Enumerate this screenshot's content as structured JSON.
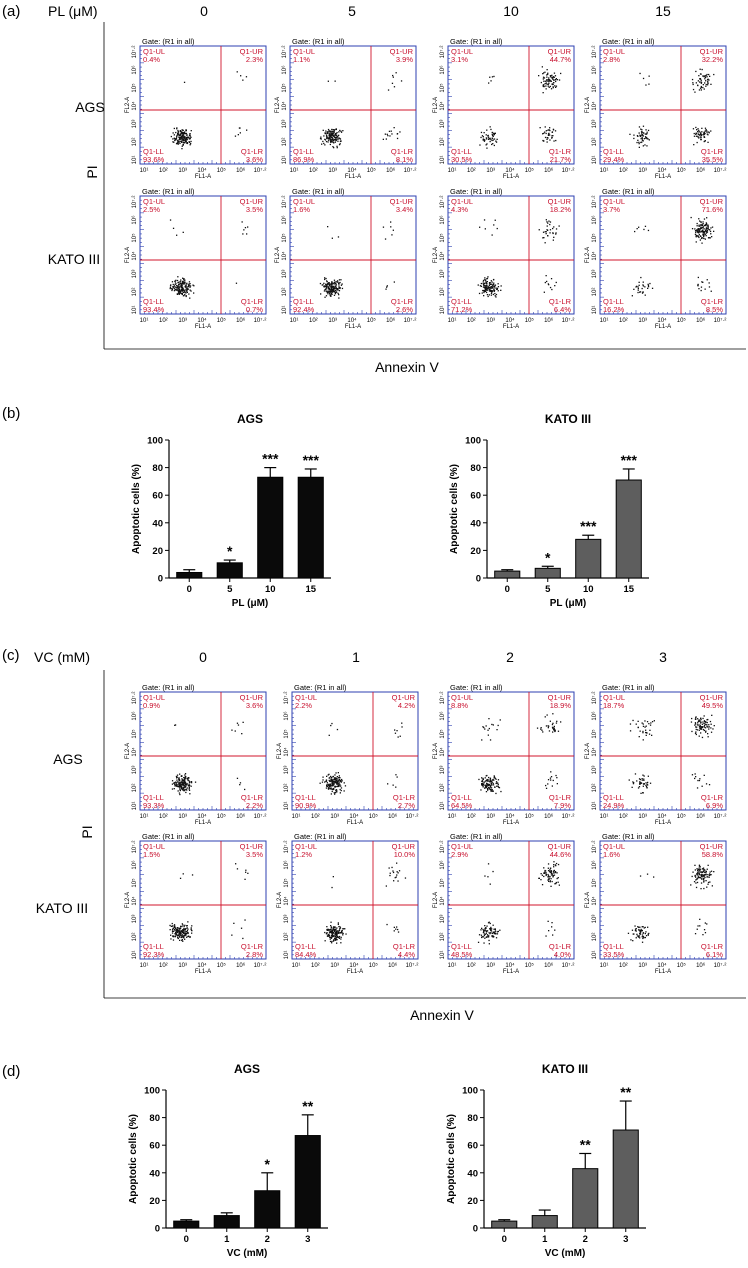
{
  "panels": {
    "a": {
      "label": "(a)",
      "condition_label": "PL (μM)",
      "columns": [
        "0",
        "5",
        "10",
        "15"
      ],
      "rows": [
        "AGS",
        "KATO III"
      ],
      "y_axis": "PI",
      "x_axis": "Annexin V",
      "plots": [
        [
          {
            "UL": "0.4%",
            "UR": "2.3%",
            "LL": "93.6%",
            "LR": "3.6%"
          },
          {
            "UL": "1.1%",
            "UR": "3.9%",
            "LL": "86.9%",
            "LR": "8.1%"
          },
          {
            "UL": "3.1%",
            "UR": "44.7%",
            "LL": "30.5%",
            "LR": "21.7%"
          },
          {
            "UL": "2.8%",
            "UR": "32.2%",
            "LL": "29.4%",
            "LR": "35.5%"
          }
        ],
        [
          {
            "UL": "2.5%",
            "UR": "3.5%",
            "LL": "93.4%",
            "LR": "0.7%"
          },
          {
            "UL": "1.6%",
            "UR": "3.4%",
            "LL": "92.4%",
            "LR": "2.6%"
          },
          {
            "UL": "4.3%",
            "UR": "18.2%",
            "LL": "71.2%",
            "LR": "6.4%"
          },
          {
            "UL": "3.7%",
            "UR": "71.6%",
            "LL": "16.2%",
            "LR": "8.5%"
          }
        ]
      ]
    },
    "b": {
      "label": "(b)"
    },
    "c": {
      "label": "(c)",
      "condition_label": "VC (mM)",
      "columns": [
        "0",
        "1",
        "2",
        "3"
      ],
      "rows": [
        "AGS",
        "KATO III"
      ],
      "y_axis": "PI",
      "x_axis": "Annexin V",
      "plots": [
        [
          {
            "UL": "0.9%",
            "UR": "3.6%",
            "LL": "93.3%",
            "LR": "2.2%"
          },
          {
            "UL": "2.2%",
            "UR": "4.2%",
            "LL": "90.9%",
            "LR": "2.7%"
          },
          {
            "UL": "8.8%",
            "UR": "18.9%",
            "LL": "64.5%",
            "LR": "7.9%"
          },
          {
            "UL": "18.7%",
            "UR": "49.5%",
            "LL": "24.9%",
            "LR": "6.9%"
          }
        ],
        [
          {
            "UL": "1.5%",
            "UR": "3.5%",
            "LL": "92.3%",
            "LR": "2.8%"
          },
          {
            "UL": "1.2%",
            "UR": "10.0%",
            "LL": "84.4%",
            "LR": "4.4%"
          },
          {
            "UL": "2.9%",
            "UR": "44.6%",
            "LL": "48.5%",
            "LR": "4.0%"
          },
          {
            "UL": "1.6%",
            "UR": "58.8%",
            "LL": "33.5%",
            "LR": "6.1%"
          }
        ]
      ]
    },
    "d": {
      "label": "(d)"
    }
  },
  "flow": {
    "gate": "Gate: (R1 in all)",
    "q_ul": "Q1-UL",
    "q_ur": "Q1-UR",
    "q_ll": "Q1-LL",
    "q_lr": "Q1-LR",
    "x_name": "FL1-A",
    "y_name": "FL2-A",
    "axis_ticks": [
      "10¹",
      "10²",
      "10³",
      "10⁴",
      "10⁵",
      "10⁶",
      "10⁷·²"
    ]
  },
  "chart_data": [
    {
      "type": "bar",
      "panel": "b",
      "title": "AGS",
      "categories": [
        "0",
        "5",
        "10",
        "15"
      ],
      "values": [
        4,
        11,
        73,
        73
      ],
      "errors": [
        2,
        2,
        7,
        6
      ],
      "significance": [
        "",
        "*",
        "***",
        "***"
      ],
      "xlabel": "PL (μM)",
      "ylabel": "Apoptotic cells (%)",
      "ylim": [
        0,
        100
      ],
      "yticks": [
        "0",
        "20",
        "40",
        "60",
        "80",
        "100"
      ],
      "color": "#0a0a0a"
    },
    {
      "type": "bar",
      "panel": "b",
      "title": "KATO III",
      "categories": [
        "0",
        "5",
        "10",
        "15"
      ],
      "values": [
        5,
        7,
        28,
        71
      ],
      "errors": [
        1,
        1.5,
        3,
        8
      ],
      "significance": [
        "",
        "*",
        "***",
        "***"
      ],
      "xlabel": "PL (μM)",
      "ylabel": "Apoptotic cells (%)",
      "ylim": [
        0,
        100
      ],
      "yticks": [
        "0",
        "20",
        "40",
        "60",
        "80",
        "100"
      ],
      "color": "#5e5e5e"
    },
    {
      "type": "bar",
      "panel": "d",
      "title": "AGS",
      "categories": [
        "0",
        "1",
        "2",
        "3"
      ],
      "values": [
        5,
        9,
        27,
        67
      ],
      "errors": [
        1,
        2,
        13,
        15
      ],
      "significance": [
        "",
        "",
        "*",
        "**"
      ],
      "xlabel": "VC (mM)",
      "ylabel": "Apoptotic cells (%)",
      "ylim": [
        0,
        100
      ],
      "yticks": [
        "0",
        "20",
        "40",
        "60",
        "80",
        "100"
      ],
      "color": "#0a0a0a"
    },
    {
      "type": "bar",
      "panel": "d",
      "title": "KATO III",
      "categories": [
        "0",
        "1",
        "2",
        "3"
      ],
      "values": [
        5,
        9,
        43,
        71
      ],
      "errors": [
        1,
        4,
        11,
        21
      ],
      "significance": [
        "",
        "",
        "**",
        "**"
      ],
      "xlabel": "VC (mM)",
      "ylabel": "Apoptotic cells (%)",
      "ylim": [
        0,
        100
      ],
      "yticks": [
        "0",
        "20",
        "40",
        "60",
        "80",
        "100"
      ],
      "color": "#5e5e5e"
    }
  ]
}
